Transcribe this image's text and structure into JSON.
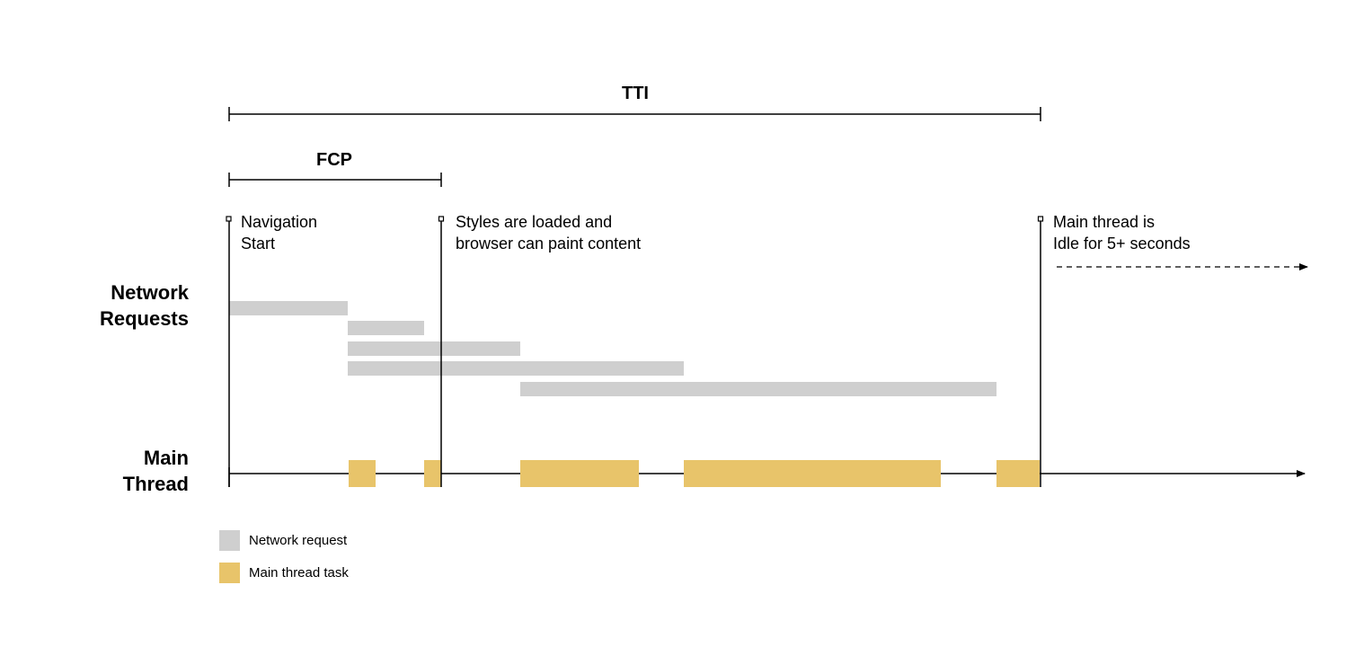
{
  "spans": {
    "tti": "TTI",
    "fcp": "FCP"
  },
  "markers": {
    "navigation": {
      "line1": "Navigation",
      "line2": "Start"
    },
    "styles": {
      "line1": "Styles are loaded and",
      "line2": "browser can paint content"
    },
    "idle": {
      "line1": "Main thread is",
      "line2": "Idle for 5+ seconds"
    }
  },
  "rows": {
    "network": {
      "line1": "Network",
      "line2": "Requests"
    },
    "main": {
      "line1": "Main",
      "line2": "Thread"
    }
  },
  "legend": {
    "network": "Network request",
    "task": "Main thread task"
  },
  "colors": {
    "network": "#cfcfcf",
    "task": "#e8c46a",
    "line": "#000000"
  }
}
